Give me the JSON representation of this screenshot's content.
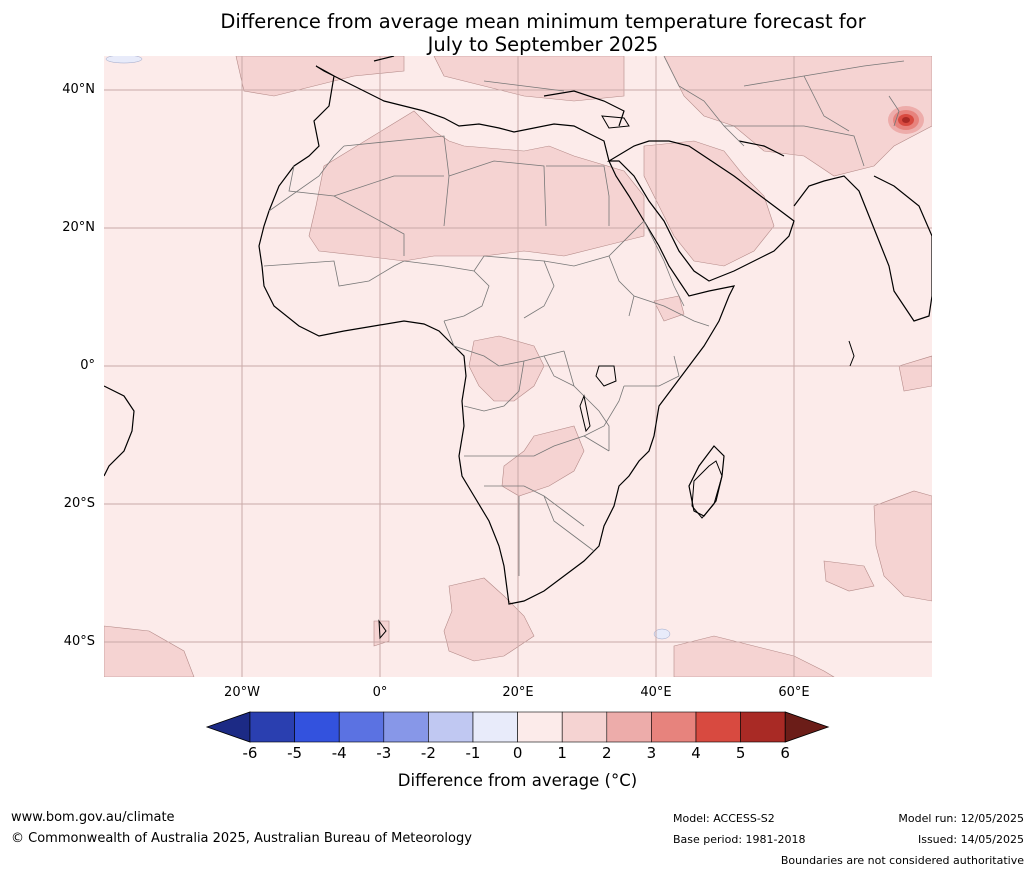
{
  "title_line1": "Difference from average mean minimum temperature forecast for",
  "title_line2": "July to September 2025",
  "lat_labels": [
    "40°N",
    "20°N",
    "0°",
    "20°S",
    "40°S"
  ],
  "lon_labels": [
    "20°W",
    "0°",
    "20°E",
    "40°E",
    "60°E"
  ],
  "colorbar": {
    "ticks": [
      "-6",
      "-5",
      "-4",
      "-3",
      "-2",
      "-1",
      "0",
      "1",
      "2",
      "3",
      "4",
      "5",
      "6"
    ],
    "colors": [
      "#1c2a85",
      "#2a3fb0",
      "#3352de",
      "#5b72e2",
      "#8797e8",
      "#c0c8f2",
      "#e8ebfa",
      "#fcebea",
      "#f5d3d2",
      "#edacaa",
      "#e7837d",
      "#d84a40",
      "#a92a25",
      "#6b1d18"
    ],
    "label": "Difference from average (°C)"
  },
  "footer": {
    "website": "www.bom.gov.au/climate",
    "copyright": "© Commonwealth of Australia 2025, Australian Bureau of Meteorology",
    "model": "Model: ACCESS-S2",
    "base_period": "Base period: 1981-2018",
    "model_run": "Model run: 12/05/2025",
    "issued": "Issued: 14/05/2025",
    "disclaimer": "Boundaries are not considered authoritative"
  }
}
